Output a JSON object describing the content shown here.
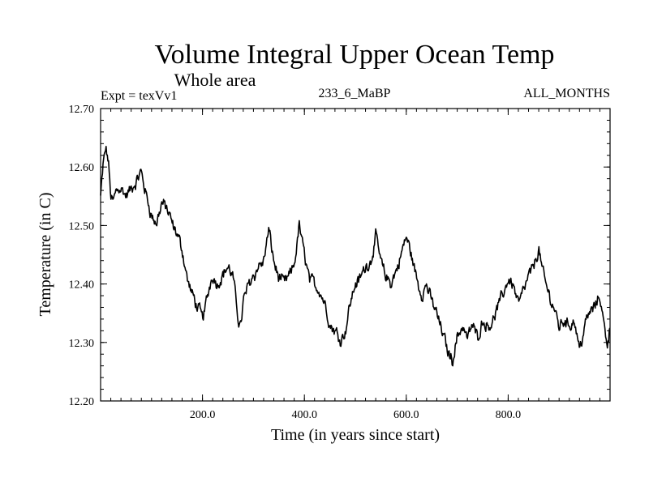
{
  "chart_data": {
    "type": "line",
    "title": "Volume Integral Upper Ocean Temp",
    "subtitle": "Whole area",
    "expt_label": "Expt = texVv1",
    "run_label": "233_6_MaBP",
    "months_label": "ALL_MONTHS",
    "xlabel": "Time (in years since start)",
    "ylabel": "Temperature (in C)",
    "xlim": [
      0,
      1000
    ],
    "ylim": [
      12.2,
      12.7
    ],
    "x_ticks": [
      200,
      400,
      600,
      800
    ],
    "x_tick_labels": [
      "200.0",
      "400.0",
      "600.0",
      "800.0"
    ],
    "y_ticks": [
      12.2,
      12.3,
      12.4,
      12.5,
      12.6,
      12.7
    ],
    "y_tick_labels": [
      "12.20",
      "12.30",
      "12.40",
      "12.50",
      "12.60",
      "12.70"
    ],
    "grid": false,
    "series": [
      {
        "name": "Volume Integral Upper Ocean Temp",
        "color": "#000000",
        "x": [
          0,
          5,
          10,
          15,
          20,
          25,
          30,
          40,
          50,
          60,
          70,
          80,
          90,
          100,
          110,
          120,
          130,
          140,
          150,
          160,
          170,
          180,
          190,
          200,
          210,
          220,
          230,
          240,
          250,
          260,
          270,
          275,
          280,
          290,
          300,
          310,
          320,
          330,
          340,
          350,
          360,
          370,
          380,
          390,
          400,
          410,
          420,
          430,
          440,
          450,
          460,
          470,
          480,
          490,
          500,
          510,
          520,
          530,
          540,
          550,
          560,
          570,
          580,
          590,
          600,
          610,
          620,
          630,
          640,
          650,
          660,
          670,
          680,
          690,
          700,
          710,
          720,
          730,
          740,
          750,
          760,
          770,
          780,
          790,
          800,
          810,
          820,
          830,
          840,
          850,
          860,
          870,
          880,
          890,
          900,
          910,
          920,
          930,
          940,
          950,
          960,
          970,
          980,
          990,
          995,
          1000
        ],
        "values": [
          12.55,
          12.6,
          12.63,
          12.61,
          12.55,
          12.54,
          12.56,
          12.57,
          12.55,
          12.56,
          12.57,
          12.59,
          12.55,
          12.52,
          12.5,
          12.54,
          12.53,
          12.5,
          12.48,
          12.46,
          12.41,
          12.38,
          12.36,
          12.34,
          12.38,
          12.42,
          12.4,
          12.42,
          12.43,
          12.41,
          12.34,
          12.33,
          12.37,
          12.4,
          12.42,
          12.43,
          12.44,
          12.49,
          12.44,
          12.41,
          12.4,
          12.41,
          12.43,
          12.5,
          12.45,
          12.41,
          12.4,
          12.39,
          12.37,
          12.33,
          12.32,
          12.31,
          12.32,
          12.37,
          12.4,
          12.41,
          12.43,
          12.44,
          12.48,
          12.44,
          12.41,
          12.4,
          12.42,
          12.45,
          12.48,
          12.45,
          12.41,
          12.38,
          12.4,
          12.37,
          12.35,
          12.32,
          12.29,
          12.27,
          12.31,
          12.33,
          12.31,
          12.33,
          12.31,
          12.34,
          12.33,
          12.34,
          12.36,
          12.38,
          12.41,
          12.4,
          12.37,
          12.39,
          12.41,
          12.43,
          12.46,
          12.41,
          12.38,
          12.36,
          12.33,
          12.34,
          12.33,
          12.34,
          12.29,
          12.33,
          12.35,
          12.36,
          12.38,
          12.32,
          12.3,
          12.33
        ]
      }
    ]
  }
}
